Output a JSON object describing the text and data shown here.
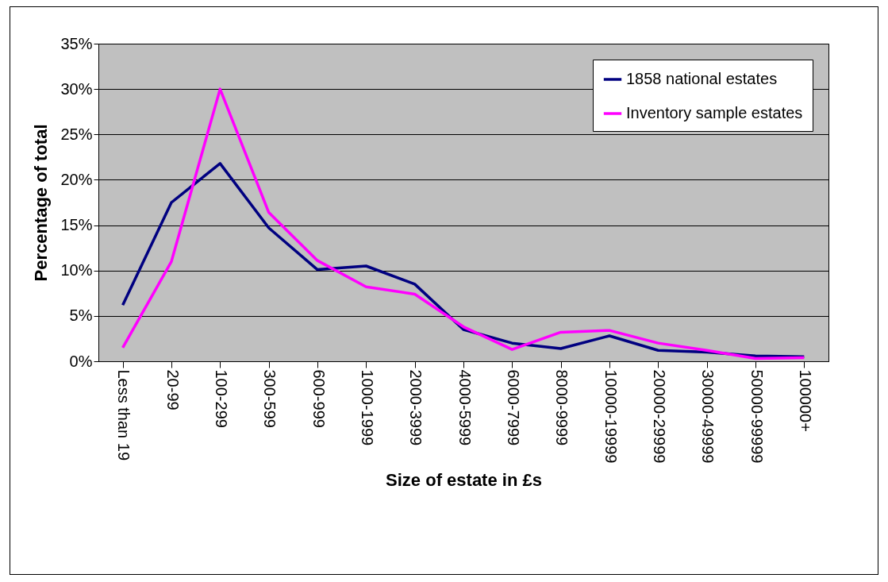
{
  "chart_data": {
    "type": "line",
    "xlabel": "Size of estate in £s",
    "ylabel": "Percentage of total",
    "categories": [
      "Less than 19",
      "20-99",
      "100-299",
      "300-599",
      "600-999",
      "1000-1999",
      "2000-3999",
      "4000-5999",
      "6000-7999",
      "8000-9999",
      "10000-19999",
      "20000-29999",
      "30000-49999",
      "50000-99999",
      "100000+"
    ],
    "series": [
      {
        "name": "1858 national estates",
        "color": "#000080",
        "values": [
          6.2,
          17.5,
          21.8,
          14.7,
          10.1,
          10.5,
          8.5,
          3.5,
          2.0,
          1.4,
          2.8,
          1.2,
          1.0,
          0.6,
          0.5
        ]
      },
      {
        "name": "Inventory sample estates",
        "color": "#ff00ff",
        "values": [
          1.5,
          11.0,
          30.0,
          16.4,
          11.1,
          8.2,
          7.4,
          3.8,
          1.3,
          3.2,
          3.4,
          2.0,
          1.2,
          0.3,
          0.4
        ]
      }
    ],
    "ylim": [
      0,
      35
    ],
    "yticks": [
      {
        "value": 0,
        "label": "0%"
      },
      {
        "value": 5,
        "label": "5%"
      },
      {
        "value": 10,
        "label": "10%"
      },
      {
        "value": 15,
        "label": "15%"
      },
      {
        "value": 20,
        "label": "20%"
      },
      {
        "value": 25,
        "label": "25%"
      },
      {
        "value": 30,
        "label": "30%"
      },
      {
        "value": 35,
        "label": "35%"
      }
    ],
    "grid": "y",
    "legend": "top right",
    "marker": "none",
    "line_style": "solid"
  }
}
